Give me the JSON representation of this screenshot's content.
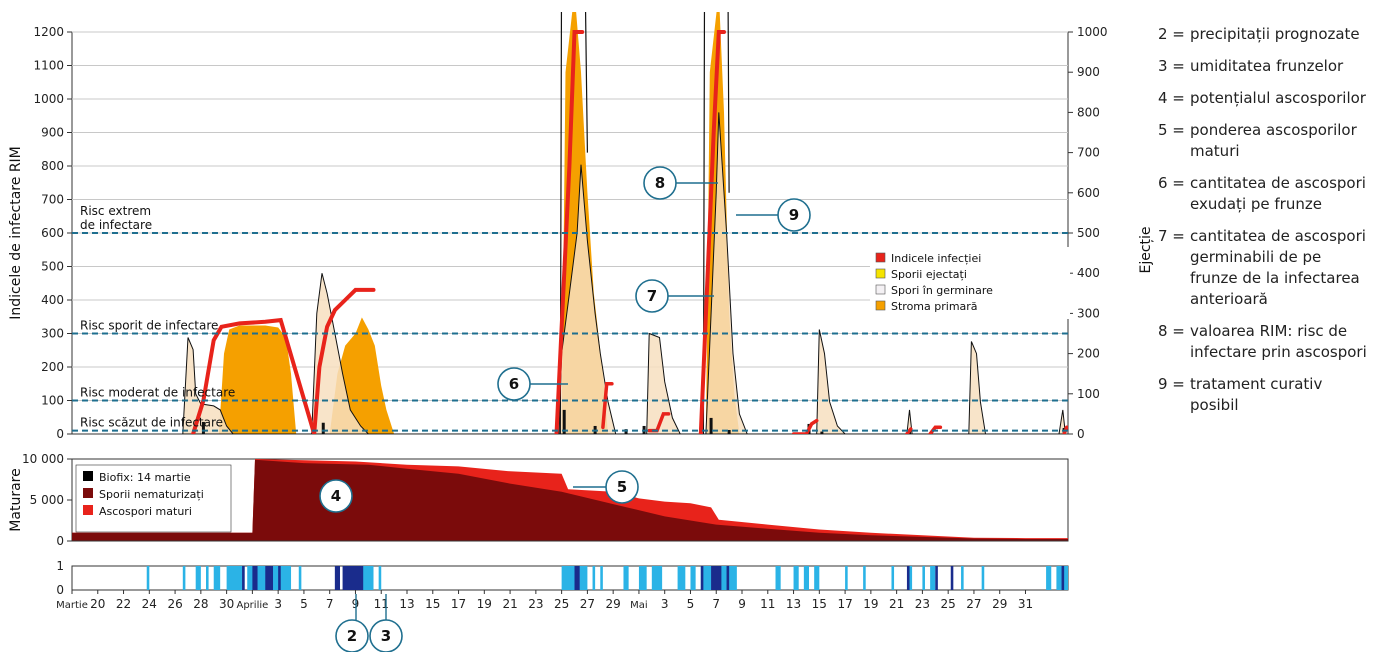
{
  "top_chart": {
    "ylabel_left": "Indicele de infectare RIM",
    "ylabel_right": "Ejecție",
    "left_ticks": [
      "0",
      "100",
      "200",
      "300",
      "400",
      "500",
      "600",
      "700",
      "800",
      "900",
      "1000",
      "1100",
      "1200"
    ],
    "right_ticks": [
      "0",
      "100",
      "200",
      "300",
      "400",
      "500",
      "600",
      "700",
      "800",
      "900",
      "1000"
    ],
    "risk_lines": [
      {
        "value": 10,
        "label": "Risc scăzut de infectare"
      },
      {
        "value": 100,
        "label": "Risc moderat de infectare"
      },
      {
        "value": 300,
        "label": "Risc sporit de infectare"
      },
      {
        "value": 600,
        "label": "Risc extrem\nde infectare"
      }
    ],
    "legend": [
      {
        "label": "Indicele infecției",
        "color": "#e8231b"
      },
      {
        "label": "Sporii ejectați",
        "color": "#f5e400"
      },
      {
        "label": "Spori în germinare",
        "color": "#f4f1f4"
      },
      {
        "label": "Stroma primară",
        "color": "#f5a000"
      }
    ]
  },
  "mid_chart": {
    "ylabel": "Maturare",
    "ticks": [
      "0",
      "5 000",
      "10 000"
    ],
    "legend": [
      {
        "label": "Biofix: 14 martie",
        "color": "#000000"
      },
      {
        "label": "Sporii nematurizați",
        "color": "#7b0b0b"
      },
      {
        "label": "Ascospori maturi",
        "color": "#e8231b"
      }
    ]
  },
  "bottom_chart": {
    "ticks": [
      "0",
      "1"
    ]
  },
  "x_axis": {
    "labels": [
      {
        "day": 18,
        "text": "Martie"
      },
      {
        "day": 20,
        "text": "20"
      },
      {
        "day": 22,
        "text": "22"
      },
      {
        "day": 24,
        "text": "24"
      },
      {
        "day": 26,
        "text": "26"
      },
      {
        "day": 28,
        "text": "28"
      },
      {
        "day": 30,
        "text": "30"
      },
      {
        "day": 32,
        "text": "Aprilie"
      },
      {
        "day": 34,
        "text": "3"
      },
      {
        "day": 36,
        "text": "5"
      },
      {
        "day": 38,
        "text": "7"
      },
      {
        "day": 40,
        "text": "9"
      },
      {
        "day": 42,
        "text": "11"
      },
      {
        "day": 44,
        "text": "13"
      },
      {
        "day": 46,
        "text": "15"
      },
      {
        "day": 48,
        "text": "17"
      },
      {
        "day": 50,
        "text": "19"
      },
      {
        "day": 52,
        "text": "21"
      },
      {
        "day": 54,
        "text": "23"
      },
      {
        "day": 56,
        "text": "25"
      },
      {
        "day": 58,
        "text": "27"
      },
      {
        "day": 60,
        "text": "29"
      },
      {
        "day": 62,
        "text": "Mai"
      },
      {
        "day": 64,
        "text": "3"
      },
      {
        "day": 66,
        "text": "5"
      },
      {
        "day": 68,
        "text": "7"
      },
      {
        "day": 70,
        "text": "9"
      },
      {
        "day": 72,
        "text": "11"
      },
      {
        "day": 74,
        "text": "13"
      },
      {
        "day": 76,
        "text": "15"
      },
      {
        "day": 78,
        "text": "17"
      },
      {
        "day": 80,
        "text": "19"
      },
      {
        "day": 82,
        "text": "21"
      },
      {
        "day": 84,
        "text": "23"
      },
      {
        "day": 86,
        "text": "25"
      },
      {
        "day": 88,
        "text": "27"
      },
      {
        "day": 90,
        "text": "29"
      },
      {
        "day": 92,
        "text": "31"
      }
    ]
  },
  "callouts": [
    "2",
    "3",
    "4",
    "5",
    "6",
    "7",
    "8",
    "9"
  ],
  "notes": [
    {
      "n": "2 =",
      "t": "precipitații prognozate"
    },
    {
      "n": "3 =",
      "t": "umiditatea frunzelor"
    },
    {
      "n": "4 =",
      "t": "potențialul ascosporilor"
    },
    {
      "n": "5 =",
      "t": "ponderea ascosporilor maturi"
    },
    {
      "n": "6 =",
      "t": "cantitatea de ascospori exudați pe frunze"
    },
    {
      "n": "7 =",
      "t": "cantitatea de ascospori germinabili de pe frunze de la infectarea anterioară"
    },
    {
      "n": "8 =",
      "t": "valoarea RIM: risc de infectare prin ascospori"
    },
    {
      "n": "9 =",
      "t": "tratament curativ posibil"
    }
  ],
  "chart_data": [
    {
      "type": "area",
      "name": "infection",
      "x_unit": "day (Martie 18 = 18, Aprilie 1 = 32, Mai 1 = 62)",
      "y_left_range": [
        0,
        1200
      ],
      "y_right_range": [
        0,
        1000
      ],
      "series": [
        {
          "name": "Stroma primară",
          "axis": "right",
          "color": "#f5a000",
          "points": [
            [
              29.4,
              0
            ],
            [
              29.8,
              200
            ],
            [
              30.2,
              260
            ],
            [
              31.0,
              270
            ],
            [
              33.0,
              270
            ],
            [
              34.0,
              265
            ],
            [
              34.6,
              240
            ],
            [
              35.0,
              150
            ],
            [
              35.4,
              0
            ],
            [
              38.0,
              0
            ],
            [
              38.6,
              150
            ],
            [
              39.2,
              220
            ],
            [
              40.0,
              250
            ],
            [
              40.5,
              290
            ],
            [
              41.0,
              260
            ],
            [
              41.5,
              220
            ],
            [
              42.0,
              120
            ],
            [
              42.4,
              60
            ],
            [
              43.0,
              0
            ],
            [
              56.0,
              0
            ],
            [
              56.3,
              900
            ],
            [
              57.0,
              1100
            ],
            [
              57.5,
              900
            ],
            [
              58.0,
              600
            ],
            [
              58.5,
              350
            ],
            [
              59.2,
              150
            ],
            [
              59.6,
              0
            ],
            [
              67.2,
              0
            ],
            [
              67.5,
              900
            ],
            [
              68.2,
              1100
            ],
            [
              68.6,
              800
            ],
            [
              69.0,
              300
            ],
            [
              69.4,
              100
            ],
            [
              69.8,
              0
            ]
          ]
        },
        {
          "name": "Spori în germinare",
          "axis": "right",
          "color": "#f4f1f4",
          "points": [
            [
              26.6,
              0
            ],
            [
              27.0,
              240
            ],
            [
              27.4,
              210
            ],
            [
              27.6,
              100
            ],
            [
              28.0,
              75
            ],
            [
              29.0,
              70
            ],
            [
              29.5,
              60
            ],
            [
              30.0,
              20
            ],
            [
              30.5,
              0
            ],
            [
              36.6,
              0
            ],
            [
              37.0,
              300
            ],
            [
              37.4,
              400
            ],
            [
              37.8,
              350
            ],
            [
              38.4,
              250
            ],
            [
              39.0,
              150
            ],
            [
              39.6,
              60
            ],
            [
              40.4,
              20
            ],
            [
              41.0,
              0
            ],
            [
              55.8,
              0
            ],
            [
              56.0,
              200
            ],
            [
              56.6,
              350
            ],
            [
              57.2,
              500
            ],
            [
              57.5,
              670
            ],
            [
              58.0,
              480
            ],
            [
              58.6,
              300
            ],
            [
              59.0,
              200
            ],
            [
              59.6,
              80
            ],
            [
              60.2,
              0
            ],
            [
              62.6,
              0
            ],
            [
              62.8,
              250
            ],
            [
              63.6,
              240
            ],
            [
              64.0,
              130
            ],
            [
              64.6,
              40
            ],
            [
              65.2,
              0
            ],
            [
              67.2,
              0
            ],
            [
              67.6,
              300
            ],
            [
              68.0,
              600
            ],
            [
              68.2,
              800
            ],
            [
              68.8,
              500
            ],
            [
              69.3,
              200
            ],
            [
              69.8,
              50
            ],
            [
              70.4,
              0
            ],
            [
              75.8,
              0
            ],
            [
              76.0,
              260
            ],
            [
              76.4,
              200
            ],
            [
              76.8,
              80
            ],
            [
              77.4,
              20
            ],
            [
              78.0,
              0
            ],
            [
              87.6,
              0
            ],
            [
              87.8,
              230
            ],
            [
              88.2,
              200
            ],
            [
              88.5,
              80
            ],
            [
              88.9,
              0
            ],
            [
              82.8,
              0
            ],
            [
              83.0,
              60
            ],
            [
              83.2,
              0
            ],
            [
              94.6,
              0
            ],
            [
              94.9,
              60
            ],
            [
              95.1,
              0
            ]
          ]
        },
        {
          "name": "Indicele infecției",
          "axis": "left",
          "color": "#e8231b",
          "points": [
            [
              27.4,
              0
            ],
            [
              28.2,
              100
            ],
            [
              29.0,
              280
            ],
            [
              29.6,
              320
            ],
            [
              31.0,
              330
            ],
            [
              33.0,
              335
            ],
            [
              34.2,
              340
            ],
            [
              36.8,
              0
            ],
            [
              37.2,
              200
            ],
            [
              37.8,
              320
            ],
            [
              38.4,
              370
            ],
            [
              39.2,
              400
            ],
            [
              40.0,
              430
            ],
            [
              41.4,
              430
            ]
          ]
        },
        {
          "name": "Indicele infecției (mai)",
          "axis": "left",
          "color": "#e8231b",
          "points": [
            [
              55.6,
              0
            ],
            [
              56.6,
              800
            ],
            [
              57.0,
              1200
            ],
            [
              57.6,
              1200
            ]
          ]
        },
        {
          "name": "Indicele infecției (7 mai)",
          "axis": "left",
          "color": "#e8231b",
          "points": [
            [
              66.8,
              0
            ],
            [
              67.8,
              900
            ],
            [
              68.2,
              1200
            ],
            [
              68.6,
              1200
            ]
          ]
        }
      ]
    },
    {
      "type": "area",
      "name": "maturation",
      "y_range": [
        0,
        10000
      ],
      "series": [
        {
          "name": "Sporii nematurizați",
          "color": "#7b0b0b",
          "points": [
            [
              18,
              1000
            ],
            [
              32,
              1000
            ],
            [
              32.2,
              9900
            ],
            [
              36,
              9500
            ],
            [
              41,
              9300
            ],
            [
              44,
              8800
            ],
            [
              48,
              8200
            ],
            [
              52,
              7000
            ],
            [
              56,
              6000
            ],
            [
              60,
              4500
            ],
            [
              64,
              3000
            ],
            [
              68,
              2000
            ],
            [
              72,
              1500
            ],
            [
              76,
              1000
            ],
            [
              80,
              700
            ],
            [
              84,
              500
            ],
            [
              88,
              300
            ],
            [
              92,
              250
            ],
            [
              95.3,
              250
            ]
          ]
        },
        {
          "name": "Ascospori maturi",
          "color": "#e8231b",
          "points": [
            [
              18,
              1000
            ],
            [
              32,
              1000
            ],
            [
              32.2,
              10000
            ],
            [
              40,
              9700
            ],
            [
              44,
              9300
            ],
            [
              48,
              9100
            ],
            [
              52,
              8500
            ],
            [
              56,
              8200
            ],
            [
              56.5,
              6300
            ],
            [
              60,
              6000
            ],
            [
              62,
              5200
            ],
            [
              64,
              4800
            ],
            [
              66,
              4600
            ],
            [
              67.6,
              4100
            ],
            [
              68.2,
              2600
            ],
            [
              72,
              2000
            ],
            [
              76,
              1400
            ],
            [
              80,
              1000
            ],
            [
              84,
              700
            ],
            [
              88,
              400
            ],
            [
              92,
              350
            ],
            [
              95.3,
              350
            ]
          ]
        }
      ]
    },
    {
      "type": "bar",
      "name": "wetness-precipitation",
      "y_range": [
        0,
        1
      ],
      "categories": [
        "umiditatea frunzelor",
        "precipitații prognozate"
      ],
      "wetness_intervals": [
        [
          23.8,
          24.0
        ],
        [
          26.6,
          26.8
        ],
        [
          27.6,
          28.0
        ],
        [
          28.4,
          28.6
        ],
        [
          29.0,
          29.5
        ],
        [
          30.0,
          31.4
        ],
        [
          31.6,
          35.0
        ],
        [
          35.6,
          35.8
        ],
        [
          39.4,
          39.6
        ],
        [
          39.8,
          41.4
        ],
        [
          41.8,
          42.0
        ],
        [
          56.0,
          58.0
        ],
        [
          58.4,
          58.6
        ],
        [
          59.0,
          59.2
        ],
        [
          60.8,
          61.2
        ],
        [
          62.0,
          62.6
        ],
        [
          63.0,
          63.8
        ],
        [
          65.0,
          65.6
        ],
        [
          66.0,
          66.4
        ],
        [
          66.8,
          69.6
        ],
        [
          72.6,
          73.0
        ],
        [
          74.0,
          74.4
        ],
        [
          74.8,
          75.2
        ],
        [
          75.6,
          76.0
        ],
        [
          78.0,
          78.2
        ],
        [
          79.4,
          79.6
        ],
        [
          81.6,
          81.8
        ],
        [
          83.0,
          83.2
        ],
        [
          84.0,
          84.2
        ],
        [
          84.6,
          85.0
        ],
        [
          87.0,
          87.2
        ],
        [
          88.6,
          88.8
        ],
        [
          93.6,
          94.0
        ],
        [
          94.4,
          95.3
        ]
      ],
      "precip_intervals": [
        [
          31.2,
          31.4
        ],
        [
          32.0,
          32.4
        ],
        [
          33.0,
          33.6
        ],
        [
          34.0,
          34.2
        ],
        [
          38.4,
          38.8
        ],
        [
          39.0,
          40.6
        ],
        [
          57.0,
          57.4
        ],
        [
          66.8,
          67.0
        ],
        [
          67.6,
          68.4
        ],
        [
          68.8,
          69.0
        ],
        [
          82.8,
          83.0
        ],
        [
          85.0,
          85.2
        ],
        [
          86.2,
          86.4
        ],
        [
          94.8,
          95.0
        ]
      ]
    }
  ]
}
